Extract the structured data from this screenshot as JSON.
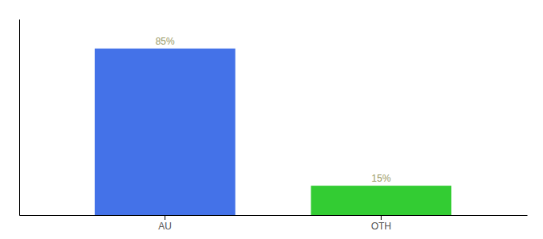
{
  "chart_data": {
    "type": "bar",
    "categories": [
      "AU",
      "OTH"
    ],
    "values": [
      85,
      15
    ],
    "value_labels": [
      "85%",
      "15%"
    ],
    "colors": [
      "#4472e8",
      "#33cc33"
    ],
    "ylim": [
      0,
      100
    ],
    "data_labels": true,
    "tick_labels": "x",
    "grid": false
  }
}
